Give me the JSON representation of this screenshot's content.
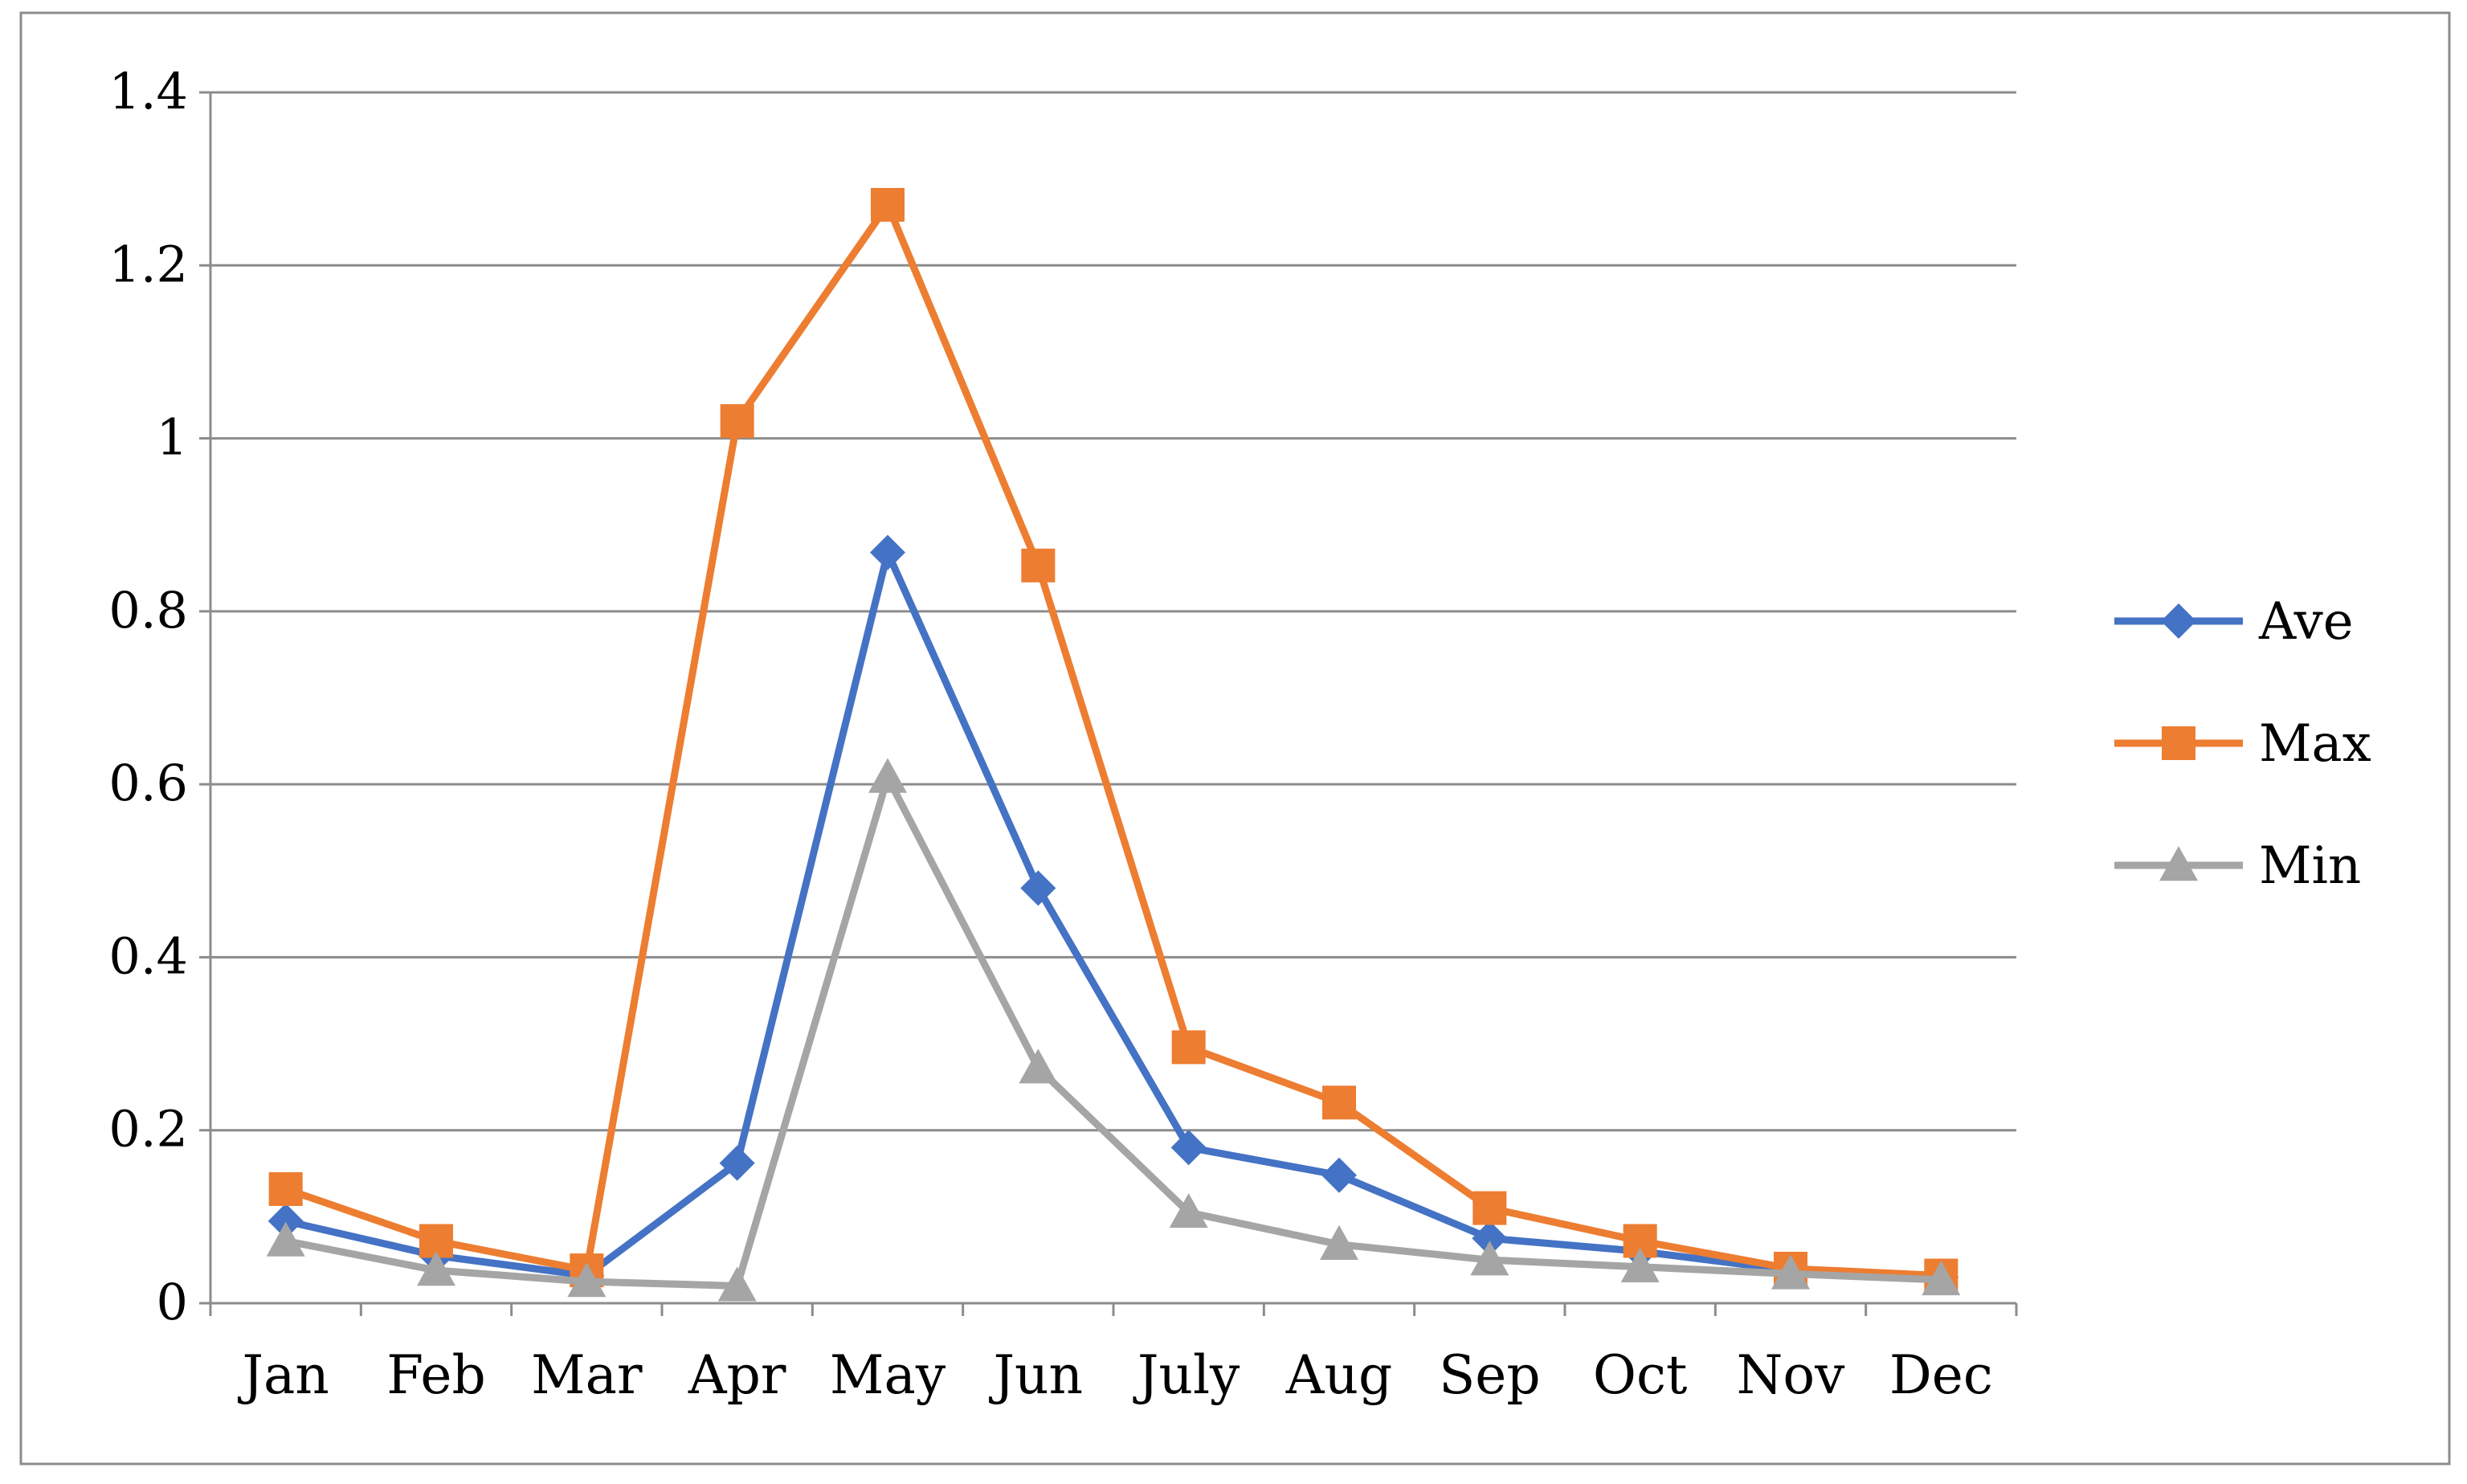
{
  "chart_data": {
    "type": "line",
    "title": "",
    "xlabel": "",
    "ylabel": "",
    "categories": [
      "Jan",
      "Feb",
      "Mar",
      "Apr",
      "May",
      "Jun",
      "July",
      "Aug",
      "Sep",
      "Oct",
      "Nov",
      "Dec"
    ],
    "ylim": [
      0,
      1.4
    ],
    "yticks": [
      0,
      0.2,
      0.4,
      0.6,
      0.8,
      1,
      1.2,
      1.4
    ],
    "ytick_labels": [
      "0",
      "0.2",
      "0.4",
      "0.6",
      "0.8",
      "1",
      "1.2",
      "1.4"
    ],
    "grid": true,
    "legend": "right",
    "series": [
      {
        "name": "Ave",
        "color": "#4472C4",
        "marker": "diamond",
        "values": [
          0.095,
          0.055,
          0.032,
          0.162,
          0.868,
          0.48,
          0.18,
          0.148,
          0.075,
          0.06,
          0.038,
          0.03
        ]
      },
      {
        "name": "Max",
        "color": "#ED7D31",
        "marker": "square",
        "values": [
          0.132,
          0.072,
          0.038,
          1.02,
          1.27,
          0.853,
          0.296,
          0.232,
          0.11,
          0.072,
          0.04,
          0.032
        ]
      },
      {
        "name": "Min",
        "color": "#A5A5A5",
        "marker": "triangle",
        "values": [
          0.072,
          0.038,
          0.025,
          0.02,
          0.608,
          0.272,
          0.105,
          0.068,
          0.05,
          0.042,
          0.034,
          0.027
        ]
      }
    ]
  }
}
